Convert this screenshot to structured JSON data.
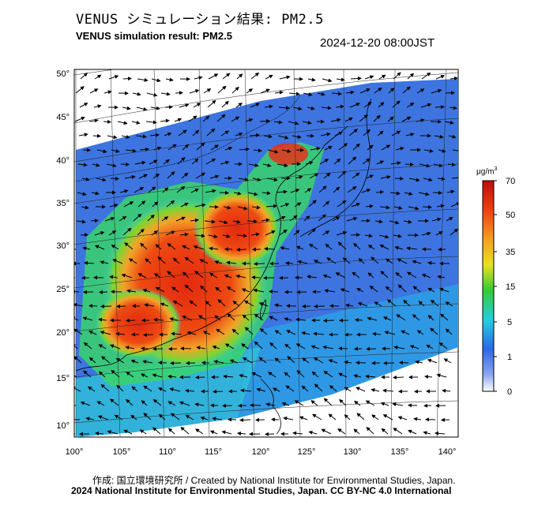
{
  "header": {
    "title_ja": "VENUS シミュレーション結果: PM2.5",
    "title_en": "VENUS simulation result: PM2.5",
    "timestamp": "2024-12-20 08:00JST"
  },
  "map": {
    "lat_labels": [
      "50°",
      "45°",
      "40°",
      "35°",
      "30°",
      "25°",
      "20°",
      "15°",
      "10°"
    ],
    "lon_labels": [
      "100°",
      "105°",
      "110°",
      "115°",
      "120°",
      "125°",
      "130°",
      "135°",
      "140°"
    ],
    "colors": {
      "water_bg": "#ffffff",
      "low": "#3f6fe0",
      "mid": "#2fc7e0",
      "high": "#33dd33",
      "very_high": "#e8d020",
      "extreme": "#e02a10"
    }
  },
  "colorbar": {
    "unit": "μg/m",
    "unit_sup": "3",
    "ticks": [
      "70",
      "50",
      "35",
      "15",
      "5",
      "1",
      "0"
    ]
  },
  "footer": {
    "credit": "作成: 国立環境研究所 / Created by National Institute for Environmental Studies, Japan.",
    "copyright": "2024 National Institute for Environmental Studies, Japan. CC BY-NC 4.0 International"
  }
}
